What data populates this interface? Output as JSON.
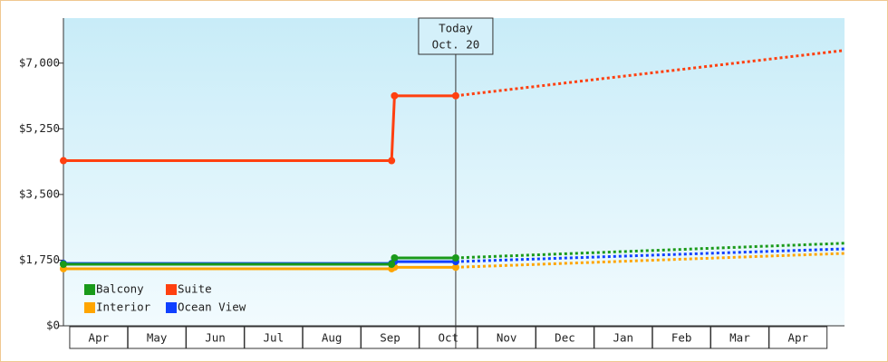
{
  "chart_data": {
    "type": "line",
    "categories": [
      "Apr",
      "May",
      "Jun",
      "Jul",
      "Aug",
      "Sep",
      "Oct",
      "Nov",
      "Dec",
      "Jan",
      "Feb",
      "Mar",
      "Apr"
    ],
    "x": [
      -0.1,
      5.53,
      5.58,
      6.63,
      13.3
    ],
    "xlim": [
      -0.1,
      13.3
    ],
    "series": [
      {
        "name": "Balcony",
        "color": "#1a9a1a",
        "values": [
          1640,
          1640,
          1810,
          1810,
          null
        ],
        "projected": [
          null,
          null,
          null,
          1810,
          2200
        ]
      },
      {
        "name": "Suite",
        "color": "#ff4010",
        "values": [
          4400,
          4400,
          6130,
          6130,
          null
        ],
        "projected": [
          null,
          null,
          null,
          6130,
          7340
        ]
      },
      {
        "name": "Interior",
        "color": "#ffa500",
        "values": [
          1520,
          1520,
          1560,
          1560,
          null
        ],
        "projected": [
          null,
          null,
          null,
          1560,
          1930
        ]
      },
      {
        "name": "Ocean View",
        "color": "#1040ff",
        "values": [
          1660,
          1660,
          1710,
          1710,
          null
        ],
        "projected": [
          null,
          null,
          null,
          1710,
          2050
        ]
      }
    ],
    "ylim": [
      0,
      8200
    ],
    "yticks": [
      {
        "value": 0,
        "label": "$0"
      },
      {
        "value": 1750,
        "label": "$1,750"
      },
      {
        "value": 3500,
        "label": "$3,500"
      },
      {
        "value": 5250,
        "label": "$5,250"
      },
      {
        "value": 7000,
        "label": "$7,000"
      }
    ],
    "annotation": {
      "lines": [
        "Today",
        "Oct. 20"
      ],
      "x": 6.63
    },
    "legend": "bottom-left"
  }
}
